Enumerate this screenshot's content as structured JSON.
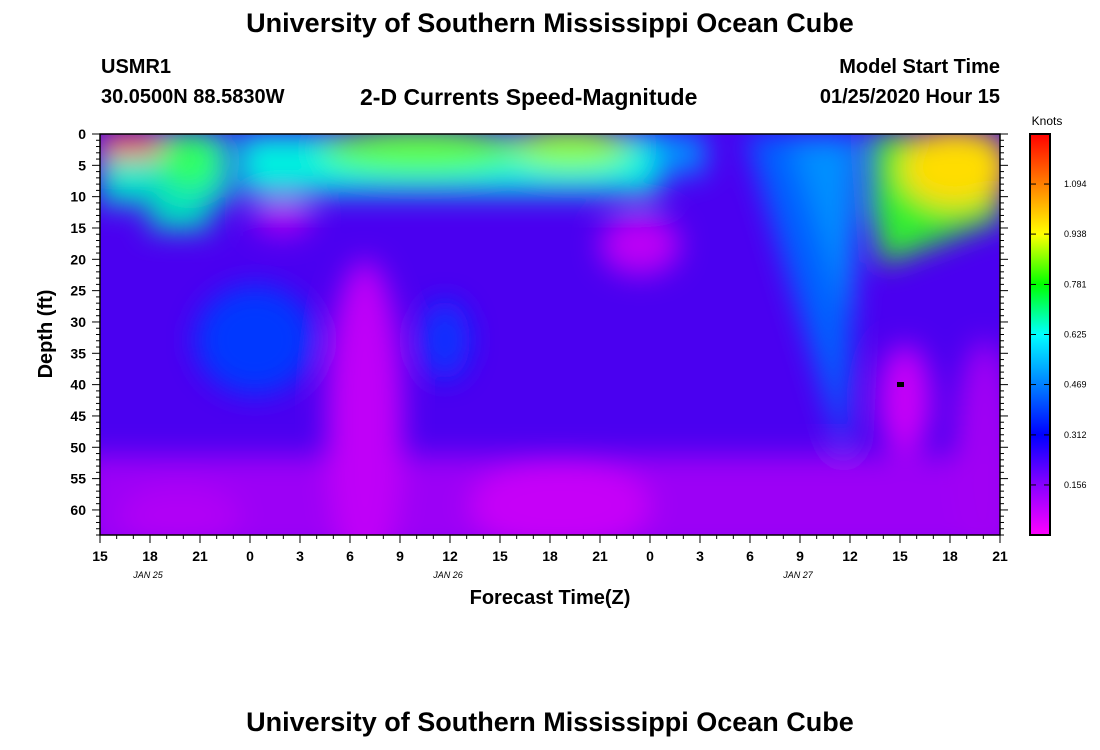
{
  "header": {
    "title": "University of Southern Mississippi Ocean Cube",
    "station_id": "USMR1",
    "station_coords": "30.0500N 88.5830W",
    "chart_title": "2-D Currents Speed-Magnitude",
    "start_label": "Model Start Time",
    "start_value": "01/25/2020 Hour 15"
  },
  "footer": {
    "title": "University of Southern Mississippi Ocean Cube"
  },
  "chart_data": {
    "type": "heatmap",
    "title": "2-D Currents Speed-Magnitude",
    "xlabel": "Forecast Time(Z)",
    "ylabel": "Depth (ft)",
    "x_tick_labels": [
      "15",
      "18",
      "21",
      "0",
      "3",
      "6",
      "9",
      "12",
      "15",
      "18",
      "21",
      "0",
      "3",
      "6",
      "9",
      "12",
      "15",
      "18",
      "21"
    ],
    "date_labels": [
      {
        "text": "JAN 25",
        "at_tick": 1
      },
      {
        "text": "JAN 26",
        "at_tick": 7
      },
      {
        "text": "JAN 27",
        "at_tick": 14
      }
    ],
    "y_ticks": [
      0,
      5,
      10,
      15,
      20,
      25,
      30,
      35,
      40,
      45,
      50,
      55,
      60
    ],
    "ylim": [
      0,
      64
    ],
    "y_inverted": true,
    "colorbar": {
      "label": "Knots",
      "ticks": [
        "1.094",
        "0.938",
        "0.781",
        "0.625",
        "0.469",
        "0.312",
        "0.156"
      ],
      "min": 0,
      "max": 1.25,
      "colors": [
        "#ff00ff",
        "#8800ff",
        "#0000ff",
        "#0080ff",
        "#00ffff",
        "#00ff00",
        "#ffff00",
        "#ff8000",
        "#ff0000"
      ]
    }
  }
}
